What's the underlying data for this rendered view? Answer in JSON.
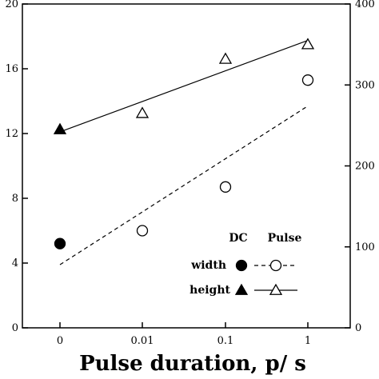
{
  "chart_data": {
    "type": "scatter",
    "xlabel": "Pulse duration, p/ s",
    "x_ticks": [
      "0",
      "0.01",
      "0.1",
      "1"
    ],
    "y_left": {
      "ylim": [
        0,
        20
      ],
      "ticks": [
        "0",
        "4",
        "8",
        "12",
        "16",
        "20"
      ]
    },
    "y_right": {
      "ylim": [
        0,
        400
      ],
      "ticks": [
        "0",
        "100",
        "200",
        "300",
        "400"
      ]
    },
    "series": [
      {
        "name": "width",
        "axis": "left",
        "x": [
          "0.01",
          "0.1",
          "1"
        ],
        "y": [
          6.0,
          8.7,
          15.3
        ],
        "marker": "open-circle",
        "fit": {
          "style": "dashed",
          "x": [
            "0",
            "1"
          ],
          "y": [
            3.9,
            13.7
          ]
        }
      },
      {
        "name": "height",
        "axis": "right",
        "x": [
          "0.01",
          "0.1",
          "1"
        ],
        "y": [
          265,
          332,
          350
        ],
        "marker": "open-triangle",
        "fit": {
          "style": "solid",
          "x": [
            "0",
            "1"
          ],
          "y": [
            242,
            355
          ]
        }
      },
      {
        "name": "width",
        "axis": "left",
        "x": [
          "0"
        ],
        "y": [
          5.2
        ],
        "marker": "filled-circle"
      },
      {
        "name": "height",
        "axis": "right",
        "x": [
          "0"
        ],
        "y": [
          245
        ],
        "marker": "filled-triangle"
      }
    ],
    "legend": {
      "col_dc": "DC",
      "col_pulse": "Pulse",
      "rows": [
        {
          "label": "width",
          "dc_marker": "filled-circle",
          "pulse_marker": "open-circle",
          "line": "dashed"
        },
        {
          "label": "height",
          "dc_marker": "filled-triangle",
          "pulse_marker": "open-triangle",
          "line": "solid"
        }
      ],
      "position": "lower-right"
    }
  }
}
